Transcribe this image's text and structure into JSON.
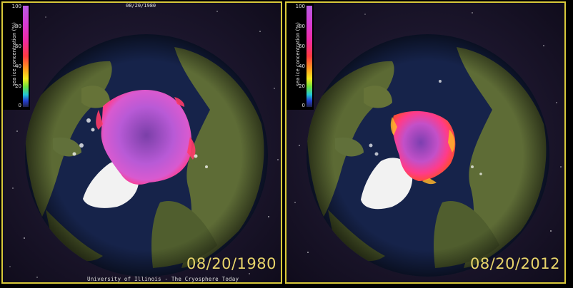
{
  "panels": [
    {
      "date_label": "08/20/1980",
      "top_date": "08/20/1980",
      "credit": "University of Illinois - The Cryosphere Today"
    },
    {
      "date_label": "08/20/2012"
    }
  ],
  "legend": {
    "title": "sea ice concentration (%)",
    "ticks": [
      "100",
      "80",
      "60",
      "40",
      "20",
      "0"
    ]
  },
  "colors": {
    "frame": "#d8c93a",
    "date_text": "#e8d46a",
    "ocean": "#16234a",
    "land": "#5c6a34",
    "ice_high": "#b35ad8",
    "ice_mid": "#ff3b8a"
  }
}
